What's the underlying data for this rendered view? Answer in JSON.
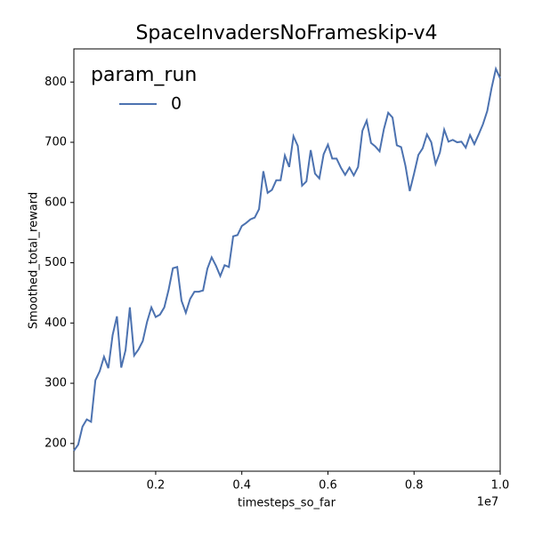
{
  "chart_data": {
    "type": "line",
    "title": "SpaceInvadersNoFrameskip-v4",
    "x_label": "timesteps_so_far",
    "x_offset_label": "1e7",
    "y_label": "Smoothed_total_reward",
    "legend_title": "param_run",
    "legend": "upper left",
    "x": [
      0.01,
      0.02,
      0.03,
      0.04,
      0.05,
      0.06,
      0.07,
      0.08,
      0.09,
      0.1,
      0.11,
      0.12,
      0.13,
      0.14,
      0.15,
      0.16,
      0.17,
      0.18,
      0.19,
      0.2,
      0.21,
      0.22,
      0.23,
      0.24,
      0.25,
      0.26,
      0.27,
      0.28,
      0.29,
      0.3,
      0.31,
      0.32,
      0.33,
      0.34,
      0.35,
      0.36,
      0.37,
      0.38,
      0.39,
      0.4,
      0.41,
      0.42,
      0.43,
      0.44,
      0.45,
      0.46,
      0.47,
      0.48,
      0.49,
      0.5,
      0.51,
      0.52,
      0.53,
      0.54,
      0.55,
      0.56,
      0.57,
      0.58,
      0.59,
      0.6,
      0.61,
      0.62,
      0.63,
      0.64,
      0.65,
      0.66,
      0.67,
      0.68,
      0.69,
      0.7,
      0.71,
      0.72,
      0.73,
      0.74,
      0.75,
      0.76,
      0.77,
      0.78,
      0.79,
      0.8,
      0.81,
      0.82,
      0.83,
      0.84,
      0.85,
      0.86,
      0.87,
      0.88,
      0.89,
      0.9,
      0.91,
      0.92,
      0.93,
      0.94,
      0.95,
      0.96,
      0.97,
      0.98,
      0.99,
      1.0
    ],
    "series": [
      {
        "name": "0",
        "color": "#4c72b0",
        "values": [
          188,
          198,
          228,
          240,
          236,
          305,
          320,
          344,
          325,
          380,
          411,
          326,
          355,
          426,
          346,
          356,
          370,
          402,
          426,
          410,
          414,
          426,
          455,
          491,
          493,
          437,
          417,
          440,
          452,
          452,
          454,
          490,
          509,
          495,
          478,
          496,
          493,
          544,
          546,
          561,
          566,
          572,
          575,
          589,
          652,
          616,
          621,
          637,
          637,
          678,
          659,
          710,
          694,
          628,
          635,
          687,
          648,
          640,
          680,
          696,
          673,
          673,
          658,
          646,
          658,
          645,
          659,
          719,
          736,
          699,
          693,
          685,
          722,
          749,
          741,
          695,
          692,
          661,
          619,
          648,
          679,
          690,
          713,
          700,
          664,
          683,
          721,
          701,
          704,
          700,
          701,
          691,
          712,
          697,
          713,
          730,
          752,
          790,
          822,
          806
        ]
      }
    ],
    "xlim": [
      0.01,
      1.0
    ],
    "xticks": [
      0.2,
      0.4,
      0.6,
      0.8,
      {
        "value": 1.0,
        "label": "1.0"
      }
    ],
    "ylim": [
      154,
      855
    ],
    "yticks": [
      200,
      300,
      400,
      500,
      600,
      700,
      800
    ]
  }
}
